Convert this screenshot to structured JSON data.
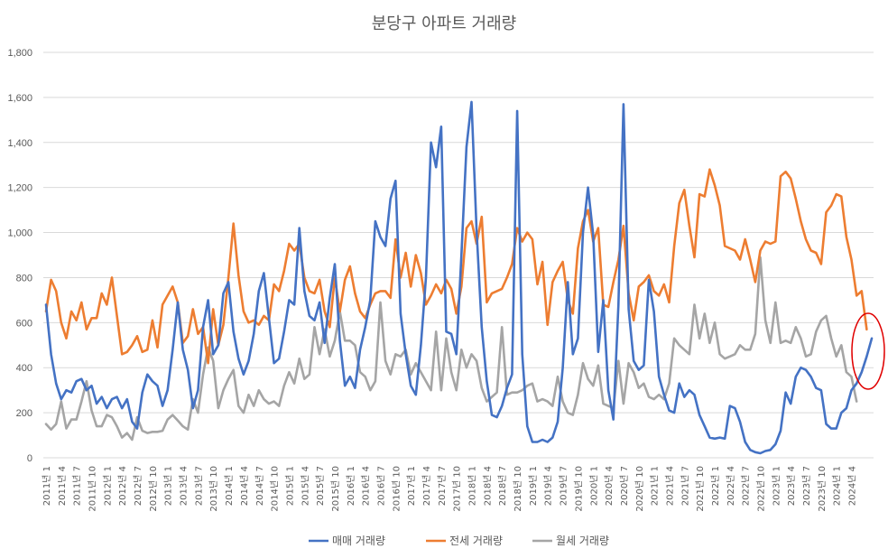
{
  "chart_data": {
    "type": "line",
    "title": "분당구 아파트 거래량",
    "xlabel": "",
    "ylabel": "",
    "ylim": [
      0,
      1800
    ],
    "yticks": [
      "0",
      "200",
      "400",
      "600",
      "800",
      "1,000",
      "1,200",
      "1,400",
      "1,600",
      "1,800"
    ],
    "grid": true,
    "legend_position": "bottom",
    "x_tick_labels": [
      "2011년 1",
      "2011년 4",
      "2011년 7",
      "2011년 10",
      "2012년 1",
      "2012년 4",
      "2012년 7",
      "2012년 10",
      "2013년 1",
      "2013년 4",
      "2013년 7",
      "2013년 10",
      "2014년 1",
      "2014년 4",
      "2014년 7",
      "2014년 10",
      "2015년 1",
      "2015년 4",
      "2015년 7",
      "2015년 10",
      "2016년 1",
      "2016년 4",
      "2016년 7",
      "2016년 10",
      "2017년 1",
      "2017년 4",
      "2017년 7",
      "2017년 10",
      "2018년 1",
      "2018년 4",
      "2018년 7",
      "2018년 10",
      "2019년 1",
      "2019년 4",
      "2019년 7",
      "2019년 10",
      "2020년 1",
      "2020년 4",
      "2020년 7",
      "2020년 10",
      "2021년 1",
      "2021년 4",
      "2021년 7",
      "2021년 10",
      "2022년 1",
      "2022년 4",
      "2022년 7",
      "2022년 10",
      "2023년 1",
      "2023년 4",
      "2023년 7",
      "2023년 10",
      "2024년 1",
      "2024년 4"
    ],
    "series": [
      {
        "name": "매매 거래량",
        "color": "#4472c4",
        "values": [
          680,
          460,
          330,
          260,
          300,
          290,
          340,
          350,
          300,
          320,
          240,
          270,
          220,
          260,
          270,
          220,
          260,
          160,
          130,
          290,
          370,
          340,
          320,
          230,
          300,
          480,
          690,
          480,
          390,
          220,
          300,
          580,
          700,
          460,
          500,
          730,
          780,
          560,
          440,
          370,
          430,
          550,
          740,
          820,
          620,
          420,
          440,
          560,
          700,
          680,
          1020,
          740,
          630,
          610,
          690,
          510,
          710,
          860,
          520,
          320,
          360,
          310,
          480,
          580,
          700,
          1050,
          980,
          940,
          1150,
          1230,
          640,
          460,
          320,
          280,
          500,
          800,
          1400,
          1290,
          1470,
          560,
          550,
          460,
          900,
          1380,
          1580,
          1010,
          580,
          340,
          190,
          180,
          230,
          310,
          370,
          1540,
          460,
          140,
          70,
          70,
          80,
          70,
          90,
          160,
          400,
          780,
          460,
          530,
          1000,
          1200,
          990,
          470,
          700,
          300,
          170,
          680,
          1570,
          660,
          430,
          390,
          410,
          790,
          650,
          360,
          280,
          210,
          200,
          330,
          270,
          300,
          280,
          190,
          140,
          90,
          85,
          90,
          85,
          230,
          220,
          160,
          70,
          35,
          25,
          20,
          30,
          35,
          60,
          120,
          290,
          240,
          360,
          400,
          390,
          360,
          310,
          300,
          150,
          130,
          130,
          200,
          220,
          300,
          330,
          380,
          450,
          530
        ]
      },
      {
        "name": "전세 거래량",
        "color": "#ed7d31",
        "values": [
          650,
          790,
          740,
          600,
          530,
          650,
          610,
          690,
          570,
          620,
          620,
          730,
          680,
          800,
          630,
          460,
          470,
          500,
          540,
          470,
          480,
          610,
          490,
          680,
          720,
          760,
          690,
          510,
          540,
          660,
          550,
          580,
          420,
          660,
          500,
          590,
          800,
          1040,
          810,
          650,
          600,
          610,
          590,
          630,
          610,
          770,
          740,
          830,
          950,
          920,
          950,
          800,
          740,
          730,
          790,
          650,
          580,
          800,
          650,
          790,
          850,
          730,
          650,
          620,
          680,
          730,
          740,
          740,
          710,
          970,
          800,
          910,
          760,
          900,
          820,
          680,
          720,
          770,
          730,
          790,
          750,
          640,
          760,
          1020,
          1050,
          950,
          1070,
          690,
          730,
          740,
          750,
          800,
          860,
          1020,
          960,
          1000,
          970,
          770,
          870,
          590,
          780,
          830,
          870,
          700,
          640,
          930,
          1050,
          1100,
          960,
          1020,
          680,
          670,
          780,
          880,
          1030,
          730,
          610,
          760,
          780,
          810,
          740,
          720,
          770,
          690,
          940,
          1130,
          1190,
          1030,
          890,
          1170,
          1160,
          1280,
          1210,
          1120,
          940,
          930,
          920,
          880,
          970,
          880,
          780,
          920,
          960,
          950,
          960,
          1250,
          1270,
          1240,
          1150,
          1050,
          970,
          920,
          910,
          860,
          1090,
          1120,
          1170,
          1160,
          980,
          880,
          720,
          740,
          570
        ]
      },
      {
        "name": "월세 거래량",
        "color": "#a5a5a5",
        "values": [
          150,
          125,
          150,
          250,
          130,
          170,
          170,
          250,
          340,
          210,
          140,
          140,
          190,
          180,
          140,
          90,
          110,
          80,
          180,
          120,
          110,
          115,
          115,
          120,
          170,
          190,
          165,
          140,
          125,
          260,
          200,
          370,
          490,
          430,
          220,
          300,
          350,
          390,
          230,
          200,
          280,
          230,
          300,
          260,
          240,
          250,
          230,
          320,
          380,
          330,
          440,
          350,
          370,
          580,
          460,
          570,
          450,
          520,
          650,
          520,
          520,
          500,
          380,
          360,
          300,
          340,
          690,
          430,
          370,
          460,
          450,
          480,
          370,
          420,
          380,
          340,
          300,
          560,
          300,
          530,
          380,
          300,
          480,
          400,
          460,
          430,
          310,
          250,
          270,
          290,
          580,
          280,
          290,
          290,
          300,
          320,
          330,
          250,
          260,
          250,
          230,
          360,
          250,
          200,
          190,
          280,
          420,
          350,
          320,
          410,
          240,
          230,
          220,
          430,
          240,
          420,
          380,
          310,
          330,
          270,
          260,
          280,
          260,
          330,
          530,
          500,
          480,
          460,
          680,
          530,
          640,
          510,
          600,
          460,
          440,
          450,
          460,
          500,
          480,
          480,
          550,
          890,
          610,
          510,
          690,
          510,
          520,
          510,
          580,
          530,
          450,
          460,
          560,
          610,
          630,
          530,
          450,
          500,
          380,
          360,
          250
        ]
      }
    ]
  }
}
